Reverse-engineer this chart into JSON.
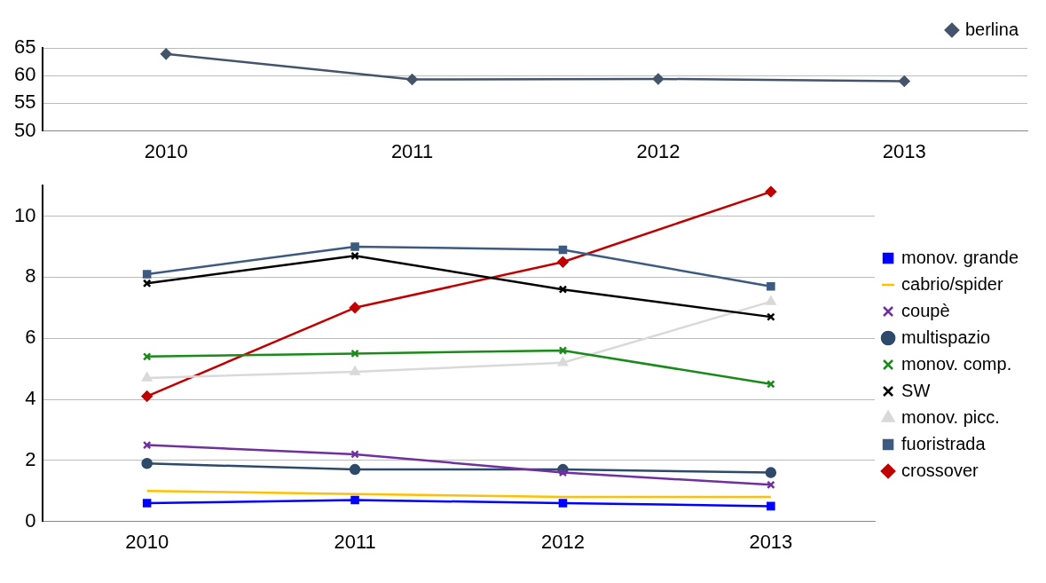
{
  "chart_data": [
    {
      "type": "line",
      "categories": [
        "2010",
        "2011",
        "2012",
        "2013"
      ],
      "ylim": [
        50,
        65
      ],
      "yticks": [
        50,
        55,
        60,
        65
      ],
      "grid": "y",
      "legend": "top right",
      "marker": "diamond",
      "series": [
        {
          "name": "berlina",
          "color": "#44546a",
          "values": [
            63.9,
            59.3,
            59.4,
            59.0
          ]
        }
      ]
    },
    {
      "type": "line",
      "categories": [
        "2010",
        "2011",
        "2012",
        "2013"
      ],
      "ylim": [
        0,
        11
      ],
      "yticks": [
        0,
        2,
        4,
        6,
        8,
        10
      ],
      "grid": "y",
      "legend": "right",
      "series": [
        {
          "name": "crossover",
          "color": "#c00000",
          "marker": "diamond",
          "values": [
            4.1,
            7.0,
            8.5,
            10.8
          ]
        },
        {
          "name": "fuoristrada",
          "color": "#3d5a80",
          "marker": "square",
          "values": [
            8.1,
            9.0,
            8.9,
            7.7
          ]
        },
        {
          "name": "monov. picc.",
          "color": "#d9d9d9",
          "marker": "triangle",
          "values": [
            4.7,
            4.9,
            5.2,
            7.2
          ]
        },
        {
          "name": "SW",
          "color": "#000000",
          "marker": "cross",
          "values": [
            7.8,
            8.7,
            7.6,
            6.7
          ]
        },
        {
          "name": "monov. comp.",
          "color": "#1a8a1a",
          "marker": "cross",
          "values": [
            5.4,
            5.5,
            5.6,
            4.5
          ]
        },
        {
          "name": "multispazio",
          "color": "#2e4a6b",
          "marker": "circle",
          "values": [
            1.9,
            1.7,
            1.7,
            1.6
          ]
        },
        {
          "name": "coupè",
          "color": "#7030a0",
          "marker": "cross",
          "values": [
            2.5,
            2.2,
            1.6,
            1.2
          ]
        },
        {
          "name": "cabrio/spider",
          "color": "#ffc000",
          "marker": "none",
          "values": [
            1.0,
            0.9,
            0.8,
            0.8
          ]
        },
        {
          "name": "monov. grande",
          "color": "#0000ff",
          "marker": "square",
          "values": [
            0.6,
            0.7,
            0.6,
            0.5
          ]
        }
      ]
    }
  ]
}
